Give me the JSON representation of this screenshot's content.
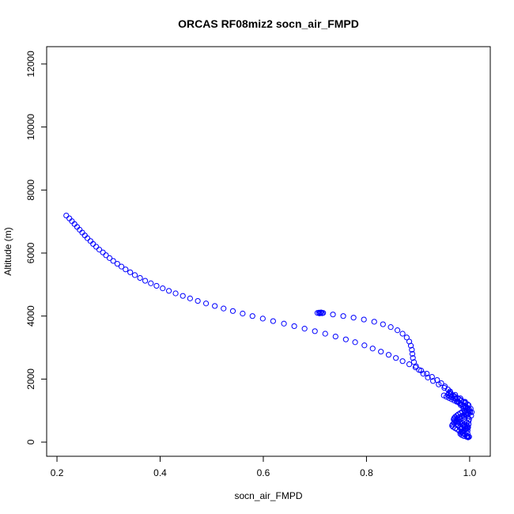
{
  "chart_data": {
    "type": "scatter",
    "title": "ORCAS RF08miz2 socn_air_FMPD",
    "xlabel": "socn_air_FMPD",
    "ylabel": "Altitude (m)",
    "xlim": [
      0.18,
      1.04
    ],
    "ylim": [
      -450,
      12550
    ],
    "xticks": [
      0.2,
      0.4,
      0.6,
      0.8,
      1.0
    ],
    "xtick_labels": [
      "0.2",
      "0.4",
      "0.6",
      "0.8",
      "1.0"
    ],
    "yticks": [
      0,
      2000,
      4000,
      6000,
      8000,
      10000,
      12000
    ],
    "ytick_labels": [
      "0",
      "2000",
      "4000",
      "6000",
      "8000",
      "10000",
      "12000"
    ],
    "marker": "open-circle",
    "grid": false,
    "legend": "none",
    "series": [
      {
        "color": "#0000ff",
        "points": [
          [
            0.218,
            7190
          ],
          [
            0.224,
            7100
          ],
          [
            0.229,
            7010
          ],
          [
            0.234,
            6920
          ],
          [
            0.239,
            6830
          ],
          [
            0.244,
            6740
          ],
          [
            0.249,
            6650
          ],
          [
            0.254,
            6560
          ],
          [
            0.259,
            6470
          ],
          [
            0.265,
            6380
          ],
          [
            0.27,
            6290
          ],
          [
            0.276,
            6200
          ],
          [
            0.282,
            6110
          ],
          [
            0.289,
            6020
          ],
          [
            0.295,
            5930
          ],
          [
            0.302,
            5840
          ],
          [
            0.309,
            5750
          ],
          [
            0.317,
            5660
          ],
          [
            0.325,
            5570
          ],
          [
            0.333,
            5480
          ],
          [
            0.342,
            5390
          ],
          [
            0.351,
            5300
          ],
          [
            0.361,
            5210
          ],
          [
            0.371,
            5120
          ],
          [
            0.382,
            5040
          ],
          [
            0.393,
            4960
          ],
          [
            0.405,
            4880
          ],
          [
            0.417,
            4800
          ],
          [
            0.43,
            4720
          ],
          [
            0.444,
            4640
          ],
          [
            0.458,
            4560
          ],
          [
            0.473,
            4480
          ],
          [
            0.489,
            4400
          ],
          [
            0.506,
            4320
          ],
          [
            0.523,
            4240
          ],
          [
            0.541,
            4160
          ],
          [
            0.56,
            4080
          ],
          [
            0.579,
            4000
          ],
          [
            0.599,
            3920
          ],
          [
            0.619,
            3840
          ],
          [
            0.64,
            3760
          ],
          [
            0.66,
            3680
          ],
          [
            0.68,
            3600
          ],
          [
            0.7,
            3520
          ],
          [
            0.72,
            3440
          ],
          [
            0.74,
            3350
          ],
          [
            0.76,
            3260
          ],
          [
            0.778,
            3170
          ],
          [
            0.796,
            3070
          ],
          [
            0.812,
            2970
          ],
          [
            0.828,
            2870
          ],
          [
            0.843,
            2770
          ],
          [
            0.857,
            2670
          ],
          [
            0.87,
            2570
          ],
          [
            0.883,
            2470
          ],
          [
            0.895,
            2370
          ],
          [
            0.906,
            2270
          ],
          [
            0.917,
            2170
          ],
          [
            0.927,
            2070
          ],
          [
            0.937,
            1970
          ],
          [
            0.945,
            1870
          ],
          [
            0.952,
            1770
          ],
          [
            0.958,
            1670
          ],
          [
            0.963,
            1570
          ],
          [
            0.968,
            1470
          ],
          [
            0.973,
            1370
          ],
          [
            0.978,
            1270
          ],
          [
            0.983,
            1170
          ],
          [
            0.988,
            1070
          ],
          [
            0.992,
            970
          ],
          [
            0.995,
            870
          ],
          [
            0.997,
            770
          ],
          [
            0.998,
            670
          ],
          [
            0.998,
            570
          ],
          [
            0.997,
            470
          ],
          [
            0.996,
            370
          ],
          [
            0.996,
            270
          ],
          [
            0.996,
            180
          ],
          [
            0.705,
            4100
          ],
          [
            0.708,
            4110
          ],
          [
            0.711,
            4100
          ],
          [
            0.714,
            4090
          ],
          [
            0.716,
            4100
          ],
          [
            0.709,
            4085
          ],
          [
            0.712,
            4115
          ],
          [
            0.735,
            4050
          ],
          [
            0.755,
            4000
          ],
          [
            0.775,
            3950
          ],
          [
            0.795,
            3890
          ],
          [
            0.815,
            3820
          ],
          [
            0.832,
            3740
          ],
          [
            0.847,
            3650
          ],
          [
            0.86,
            3550
          ],
          [
            0.87,
            3440
          ],
          [
            0.878,
            3320
          ],
          [
            0.883,
            3190
          ],
          [
            0.886,
            3060
          ],
          [
            0.888,
            2930
          ],
          [
            0.889,
            2800
          ],
          [
            0.89,
            2670
          ],
          [
            0.892,
            2540
          ],
          [
            0.896,
            2410
          ],
          [
            0.902,
            2290
          ],
          [
            0.91,
            2170
          ],
          [
            0.919,
            2050
          ],
          [
            0.929,
            1940
          ],
          [
            0.94,
            1830
          ],
          [
            0.951,
            1720
          ],
          [
            0.962,
            1610
          ],
          [
            0.972,
            1500
          ],
          [
            0.982,
            1390
          ],
          [
            0.991,
            1280
          ],
          [
            0.998,
            1170
          ],
          [
            1.002,
            1060
          ],
          [
            1.004,
            950
          ],
          [
            1.003,
            840
          ],
          [
            0.999,
            730
          ],
          [
            0.994,
            620
          ],
          [
            0.988,
            520
          ],
          [
            0.983,
            430
          ],
          [
            0.95,
            1480
          ],
          [
            0.955,
            1440
          ],
          [
            0.96,
            1400
          ],
          [
            0.965,
            1360
          ],
          [
            0.97,
            1320
          ],
          [
            0.975,
            1280
          ],
          [
            0.98,
            1240
          ],
          [
            0.985,
            1200
          ],
          [
            0.99,
            1160
          ],
          [
            0.993,
            1120
          ],
          [
            0.996,
            1080
          ],
          [
            0.999,
            1040
          ],
          [
            0.999,
            980
          ],
          [
            0.996,
            940
          ],
          [
            0.992,
            900
          ],
          [
            0.988,
            860
          ],
          [
            0.984,
            820
          ],
          [
            0.98,
            780
          ],
          [
            0.976,
            740
          ],
          [
            0.974,
            700
          ],
          [
            0.975,
            660
          ],
          [
            0.978,
            620
          ],
          [
            0.983,
            580
          ],
          [
            0.988,
            540
          ],
          [
            0.992,
            500
          ],
          [
            0.994,
            460
          ],
          [
            0.993,
            420
          ],
          [
            0.99,
            380
          ],
          [
            0.986,
            340
          ],
          [
            0.983,
            300
          ],
          [
            0.982,
            260
          ],
          [
            0.985,
            220
          ],
          [
            0.989,
            190
          ],
          [
            0.994,
            170
          ],
          [
            0.997,
            160
          ],
          [
            0.958,
            1500
          ],
          [
            0.961,
            1460
          ],
          [
            0.966,
            1420
          ],
          [
            0.971,
            1380
          ],
          [
            0.977,
            1300
          ],
          [
            0.982,
            1220
          ],
          [
            0.987,
            1140
          ],
          [
            0.992,
            1100
          ],
          [
            0.997,
            1020
          ],
          [
            1.001,
            960
          ],
          [
            0.998,
            900
          ],
          [
            0.994,
            850
          ],
          [
            0.99,
            800
          ],
          [
            0.985,
            760
          ],
          [
            0.981,
            720
          ],
          [
            0.979,
            680
          ],
          [
            0.981,
            640
          ],
          [
            0.986,
            600
          ],
          [
            0.99,
            560
          ],
          [
            0.995,
            520
          ],
          [
            0.997,
            480
          ],
          [
            0.996,
            440
          ],
          [
            0.992,
            400
          ],
          [
            0.988,
            360
          ],
          [
            0.985,
            320
          ],
          [
            0.987,
            280
          ],
          [
            0.991,
            240
          ],
          [
            0.995,
            200
          ],
          [
            0.999,
            170
          ],
          [
            0.997,
            150
          ],
          [
            0.99,
            1000
          ],
          [
            0.986,
            960
          ],
          [
            0.982,
            920
          ],
          [
            0.978,
            880
          ],
          [
            0.975,
            840
          ],
          [
            0.972,
            800
          ],
          [
            0.97,
            760
          ],
          [
            0.969,
            720
          ],
          [
            0.971,
            680
          ],
          [
            0.974,
            640
          ],
          [
            0.97,
            600
          ],
          [
            0.967,
            560
          ],
          [
            0.966,
            520
          ],
          [
            0.968,
            480
          ],
          [
            0.972,
            440
          ],
          [
            0.976,
            400
          ],
          [
            0.98,
            360
          ],
          [
            0.978,
            520
          ],
          [
            0.981,
            460
          ],
          [
            0.985,
            440
          ],
          [
            0.96,
            1560
          ],
          [
            0.964,
            1520
          ],
          [
            0.968,
            1480
          ],
          [
            0.972,
            1440
          ],
          [
            0.976,
            1400
          ],
          [
            0.98,
            1360
          ],
          [
            0.984,
            1320
          ],
          [
            0.988,
            1280
          ],
          [
            0.992,
            1240
          ],
          [
            0.996,
            1200
          ]
        ]
      }
    ]
  }
}
